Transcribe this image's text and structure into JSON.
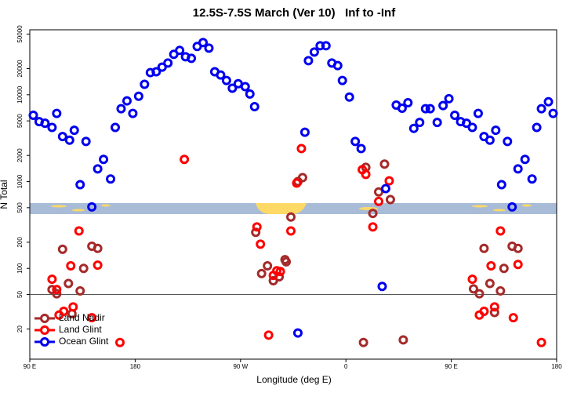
{
  "chart_data": {
    "type": "scatter",
    "title": "12.5S-7.5S March (Ver 10)   Inf to -Inf",
    "x_label": "Longitude (deg E)",
    "y_label": "N Total",
    "log_y": true,
    "legend_position": "bottom-left",
    "reference_line": 50,
    "xlim": [
      90,
      540
    ],
    "ylim": [
      9,
      56000
    ],
    "xticks": [
      {
        "value": 90,
        "label": "90 E"
      },
      {
        "value": 180,
        "label": "180"
      },
      {
        "value": 270,
        "label": "90 W"
      },
      {
        "value": 360,
        "label": "0"
      },
      {
        "value": 450,
        "label": "90 E"
      },
      {
        "value": 540,
        "label": "180"
      }
    ],
    "yticks": [
      20,
      50,
      100,
      200,
      500,
      1000,
      2000,
      5000,
      10000,
      20000,
      50000
    ],
    "series": [
      {
        "name": "Land Nadir",
        "color": "#a52a2a",
        "x": [
          109,
          113,
          118,
          123,
          126,
          133,
          136,
          143,
          148,
          283,
          288,
          293,
          298,
          303,
          308,
          309,
          313,
          319,
          323,
          375,
          377,
          383,
          388,
          393,
          398,
          409,
          469,
          474,
          478,
          483,
          487,
          492,
          495,
          502,
          507
        ],
        "values": [
          57,
          51,
          166,
          67,
          30,
          55,
          100,
          180,
          170,
          260,
          87,
          107,
          72,
          80,
          126,
          119,
          390,
          1000,
          1110,
          14,
          1460,
          430,
          760,
          1590,
          620,
          15,
          58,
          51,
          170,
          67,
          31,
          55,
          100,
          180,
          170
        ]
      },
      {
        "name": "Land Glint",
        "color": "#ff0000",
        "x": [
          109,
          113,
          115,
          119,
          125,
          127,
          132,
          143,
          148,
          167,
          222,
          294,
          284,
          287,
          298,
          301,
          304,
          313,
          318,
          322,
          374,
          377,
          383,
          388,
          397,
          468,
          474,
          478,
          484,
          487,
          492,
          503,
          507,
          527
        ],
        "values": [
          75,
          57,
          29,
          32,
          107,
          36,
          270,
          27,
          109,
          14,
          1800,
          17,
          300,
          190,
          83,
          94,
          92,
          270,
          960,
          2400,
          1370,
          1210,
          300,
          590,
          1020,
          75,
          29,
          32,
          107,
          36,
          270,
          27,
          111,
          14
        ]
      },
      {
        "name": "Ocean Glint",
        "color": "#0000ee",
        "x": [
          93,
          98,
          103,
          109,
          113,
          118,
          124,
          128,
          133,
          138,
          143,
          148,
          153,
          159,
          163,
          168,
          173,
          178,
          183,
          188,
          193,
          198,
          203,
          208,
          213,
          218,
          223,
          228,
          233,
          238,
          243,
          248,
          253,
          258,
          263,
          268,
          274,
          278,
          282,
          319,
          325,
          328,
          333,
          338,
          343,
          348,
          353,
          357,
          363,
          368,
          373,
          391,
          394,
          403,
          408,
          413,
          418,
          423,
          428,
          432,
          438,
          443,
          448,
          453,
          458,
          463,
          468,
          473,
          478,
          483,
          488,
          493,
          498,
          502,
          507,
          513,
          519,
          523,
          527,
          533,
          537
        ],
        "values": [
          5800,
          4900,
          4700,
          4200,
          6100,
          3300,
          3000,
          3900,
          920,
          2900,
          510,
          1400,
          1800,
          1070,
          4200,
          6900,
          8500,
          6100,
          9600,
          13200,
          18000,
          18400,
          20800,
          23200,
          29200,
          32400,
          27400,
          26300,
          36000,
          39900,
          34400,
          18400,
          16900,
          14600,
          11900,
          13400,
          12400,
          10200,
          7300,
          18,
          3700,
          24700,
          31000,
          36700,
          36700,
          23200,
          21700,
          14600,
          9400,
          2900,
          2400,
          62,
          830,
          7600,
          7000,
          8100,
          4100,
          4800,
          6900,
          6900,
          4800,
          7500,
          9000,
          5800,
          4900,
          4700,
          4200,
          6100,
          3300,
          3000,
          3900,
          920,
          2900,
          510,
          1400,
          1800,
          1070,
          4200,
          6900,
          8300,
          6100
        ]
      }
    ]
  }
}
